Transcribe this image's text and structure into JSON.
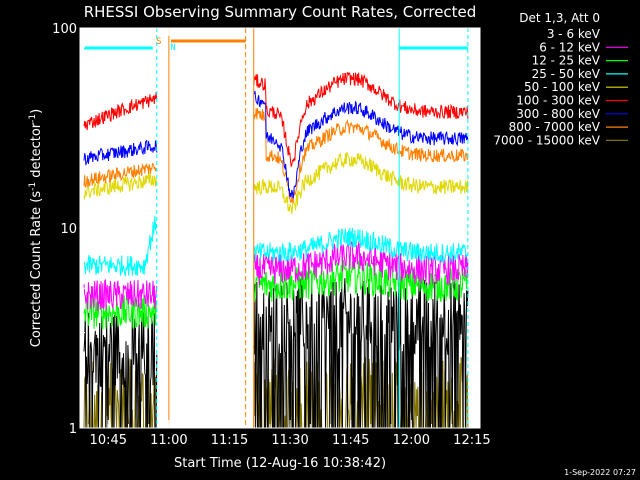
{
  "chart_data": {
    "type": "line",
    "title": "RHESSI Observing Summary Count Rates, Corrected",
    "xlabel": "Start Time (12-Aug-16 10:38:42)",
    "ylabel": "Corrected Count Rate (s",
    "ylabel_sup1": "-1",
    "ylabel_mid": " detector",
    "ylabel_sup2": "-1",
    "ylabel_end": ")",
    "yscale": "log",
    "ylim": [
      1,
      100
    ],
    "xlim_minutes": [
      10.633,
      12.283
    ],
    "xticks": [
      "10:45",
      "11:00",
      "11:15",
      "11:30",
      "11:45",
      "12:00",
      "12:15"
    ],
    "yticks": [
      "1",
      "10",
      "100"
    ],
    "legend_header": "Det 1,3, Att 0",
    "timestamp": "1-Sep-2022 07:27",
    "markers": [
      "S",
      "N"
    ],
    "series": [
      {
        "name": "3 - 6 keV",
        "color": "#000000"
      },
      {
        "name": "6 - 12 keV",
        "color": "#ff00ff"
      },
      {
        "name": "12 - 25 keV",
        "color": "#00ff00"
      },
      {
        "name": "25 - 50 keV",
        "color": "#00ffff"
      },
      {
        "name": "50 - 100 keV",
        "color": "#e0d800"
      },
      {
        "name": "100 - 300 keV",
        "color": "#ff0000"
      },
      {
        "name": "300 - 800 keV",
        "color": "#0000ff"
      },
      {
        "name": "800 - 7000 keV",
        "color": "#ff8000"
      },
      {
        "name": "7000 - 15000 keV",
        "color": "#807000"
      }
    ]
  }
}
